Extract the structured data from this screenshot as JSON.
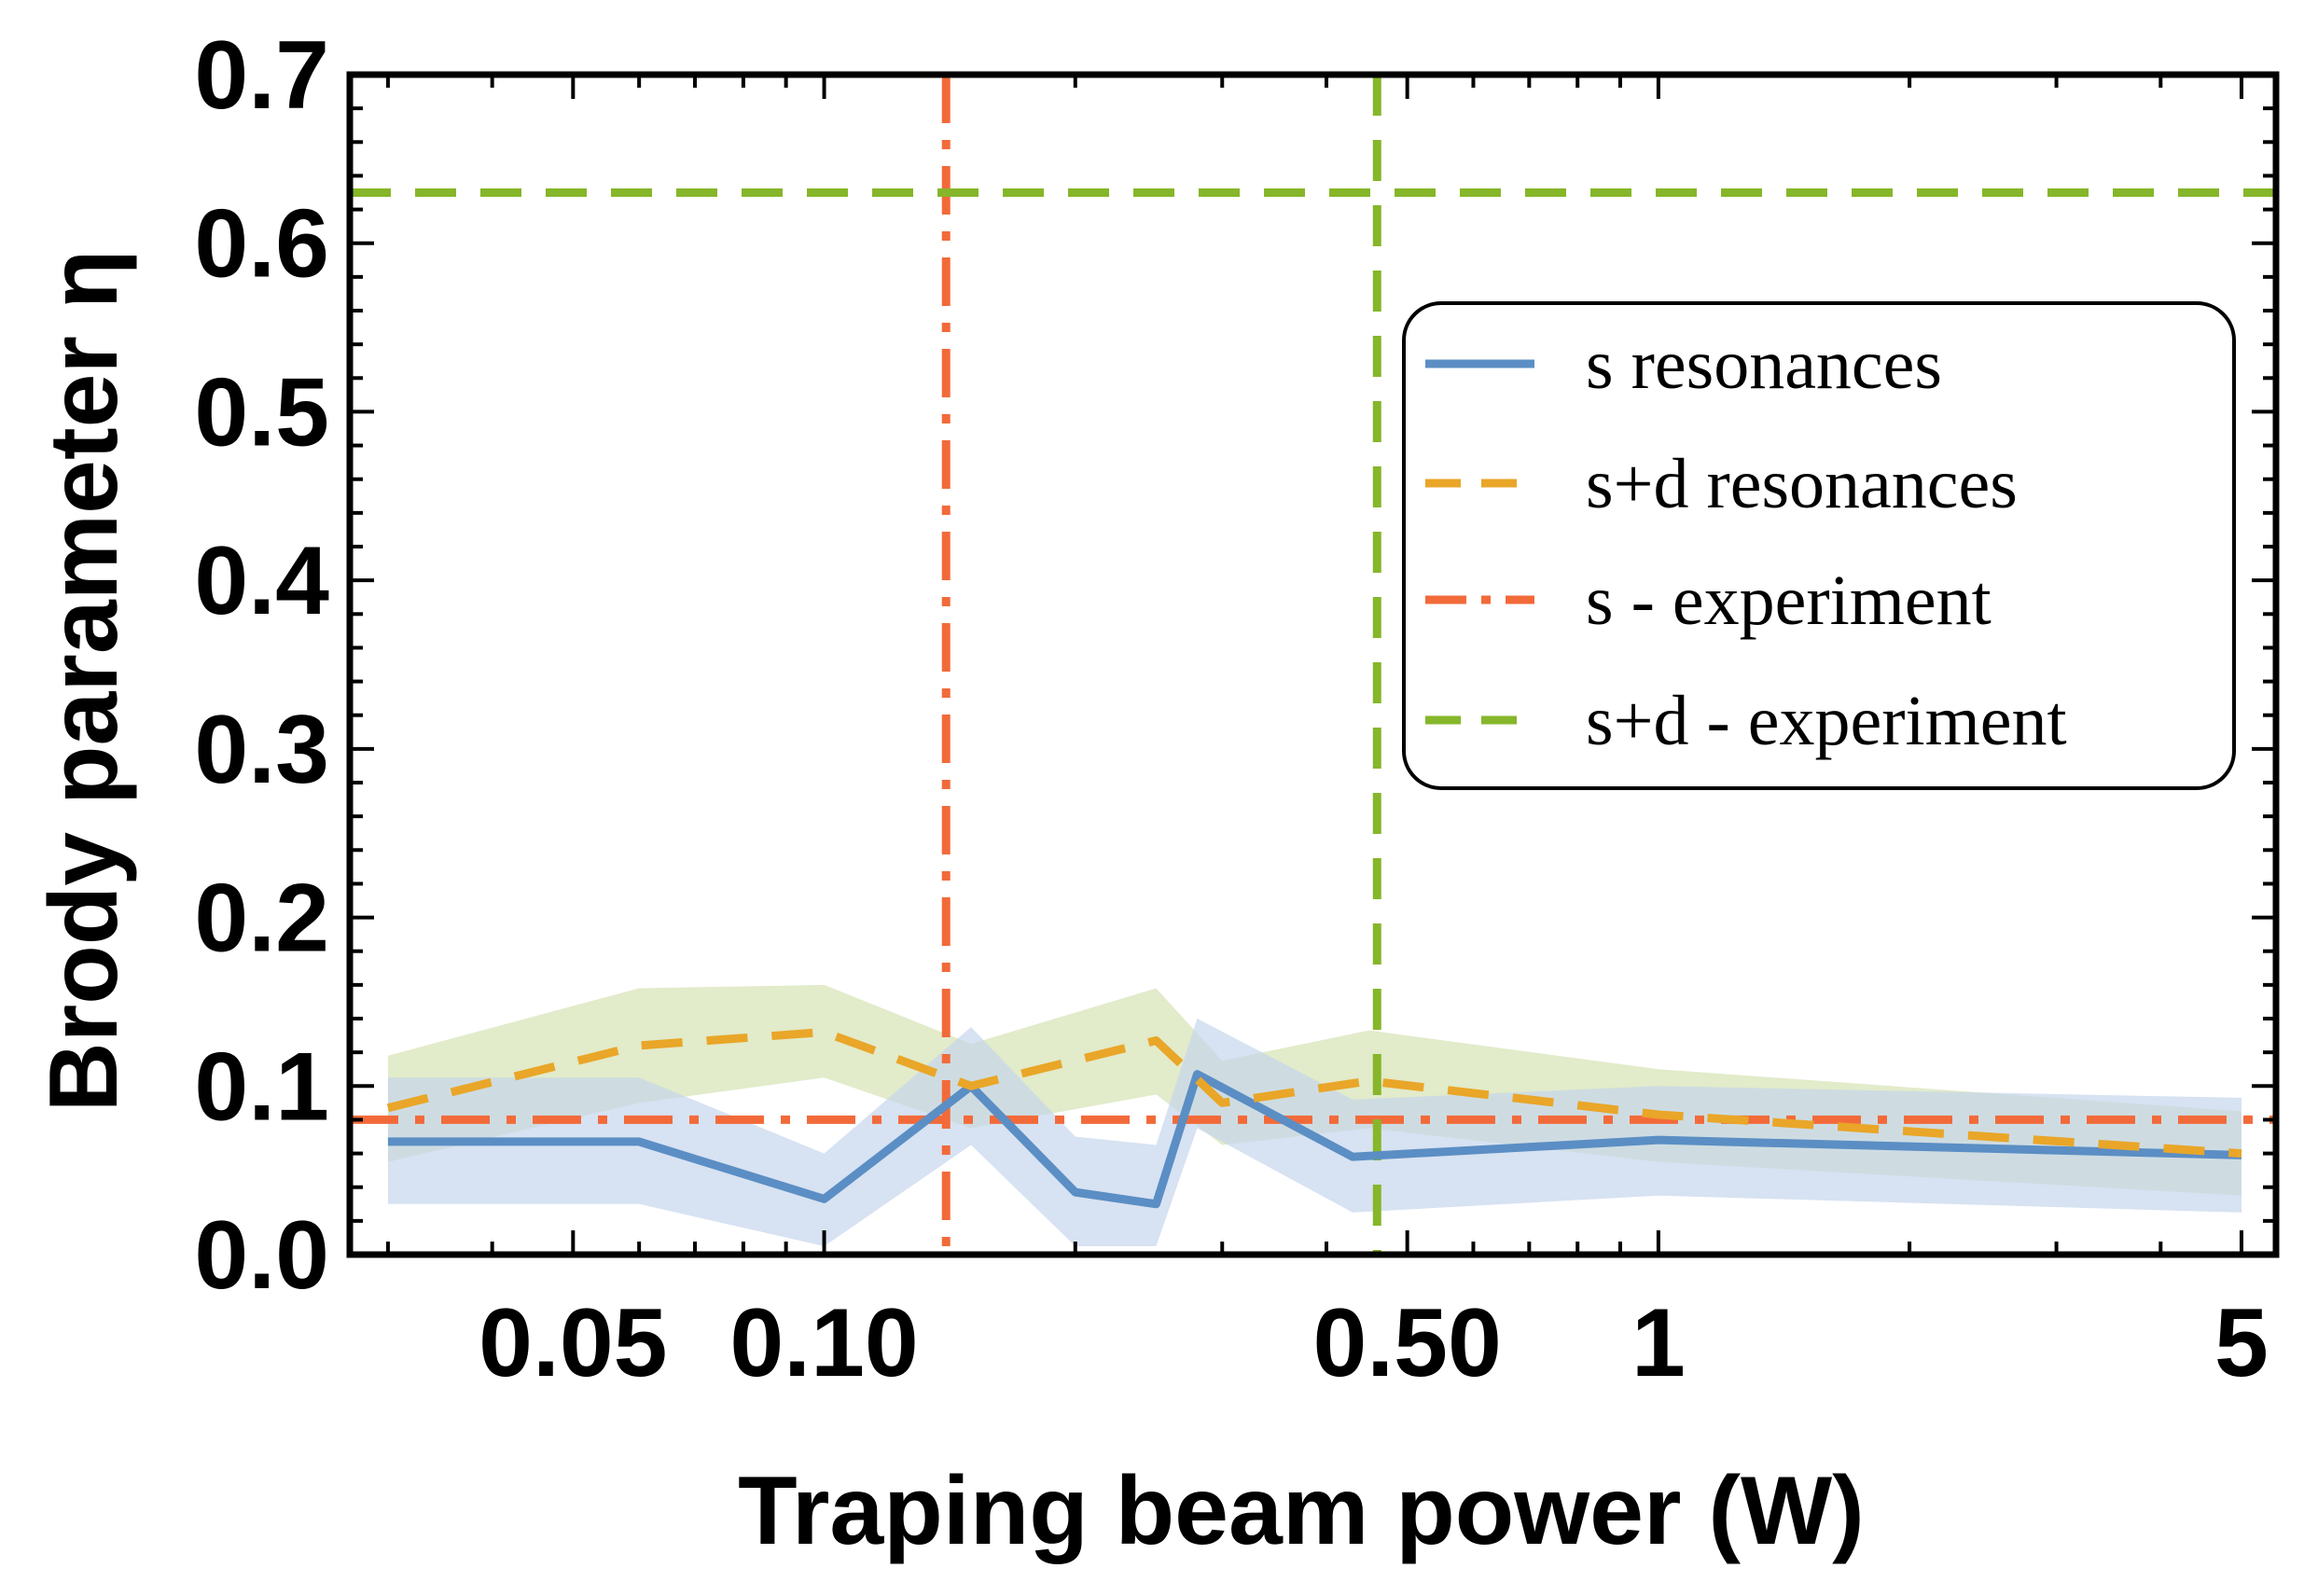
{
  "chart_data": {
    "type": "line",
    "title": "",
    "xlabel": "Traping beam power (W)",
    "ylabel": "Brody parameter η",
    "xscale": "log",
    "xlim": [
      0.027,
      5.5
    ],
    "ylim": [
      0,
      0.7
    ],
    "xticks": [
      {
        "value": 0.05,
        "label": "0.05"
      },
      {
        "value": 0.1,
        "label": "0.10"
      },
      {
        "value": 0.5,
        "label": "0.50"
      },
      {
        "value": 1,
        "label": "1"
      },
      {
        "value": 5,
        "label": "5"
      }
    ],
    "yticks": [
      {
        "value": 0.0,
        "label": "0.0"
      },
      {
        "value": 0.1,
        "label": "0.1"
      },
      {
        "value": 0.2,
        "label": "0.2"
      },
      {
        "value": 0.3,
        "label": "0.3"
      },
      {
        "value": 0.4,
        "label": "0.4"
      },
      {
        "value": 0.5,
        "label": "0.5"
      },
      {
        "value": 0.6,
        "label": "0.6"
      },
      {
        "value": 0.7,
        "label": "0.7"
      }
    ],
    "series": [
      {
        "name": "s resonances",
        "color": "#5b8ec4",
        "band_color": "#c6d6ec",
        "style": "solid",
        "x": [
          0.03,
          0.06,
          0.1,
          0.15,
          0.2,
          0.25,
          0.28,
          0.43,
          1.0,
          5.0
        ],
        "values": [
          0.067,
          0.067,
          0.033,
          0.1,
          0.037,
          0.03,
          0.107,
          0.058,
          0.068,
          0.059
        ],
        "lower": [
          0.03,
          0.03,
          0.005,
          0.065,
          0.005,
          0.005,
          0.075,
          0.025,
          0.035,
          0.025
        ],
        "upper": [
          0.105,
          0.105,
          0.06,
          0.135,
          0.07,
          0.065,
          0.14,
          0.092,
          0.1,
          0.093
        ]
      },
      {
        "name": "s+d resonances",
        "color": "#e9a628",
        "band_color": "#d8e4b8",
        "style": "dashed",
        "x": [
          0.03,
          0.06,
          0.1,
          0.15,
          0.25,
          0.3,
          0.45,
          1.0,
          5.0
        ],
        "values": [
          0.087,
          0.124,
          0.132,
          0.1,
          0.127,
          0.09,
          0.103,
          0.083,
          0.06
        ],
        "lower": [
          0.055,
          0.09,
          0.105,
          0.075,
          0.095,
          0.065,
          0.075,
          0.055,
          0.035
        ],
        "upper": [
          0.118,
          0.158,
          0.16,
          0.125,
          0.158,
          0.115,
          0.133,
          0.11,
          0.085
        ]
      }
    ],
    "reference_lines": [
      {
        "name": "s - experiment",
        "orientation": "horizontal",
        "value": 0.08,
        "color": "#f26a3a",
        "style": "dashdot"
      },
      {
        "name": "s - experiment",
        "orientation": "vertical",
        "value": 0.14,
        "color": "#f26a3a",
        "style": "dashdot"
      },
      {
        "name": "s+d - experiment",
        "orientation": "horizontal",
        "value": 0.63,
        "color": "#86b62a",
        "style": "dashed"
      },
      {
        "name": "s+d - experiment",
        "orientation": "vertical",
        "value": 0.46,
        "color": "#86b62a",
        "style": "dashed"
      }
    ],
    "legend": {
      "placement": "right",
      "entries": [
        {
          "label": "s resonances",
          "color": "#5b8ec4",
          "style": "solid"
        },
        {
          "label": "s+d resonances",
          "color": "#e9a628",
          "style": "dashed"
        },
        {
          "label": "s - experiment",
          "color": "#f26a3a",
          "style": "dashdot"
        },
        {
          "label": "s+d - experiment",
          "color": "#86b62a",
          "style": "dashed"
        }
      ]
    }
  }
}
